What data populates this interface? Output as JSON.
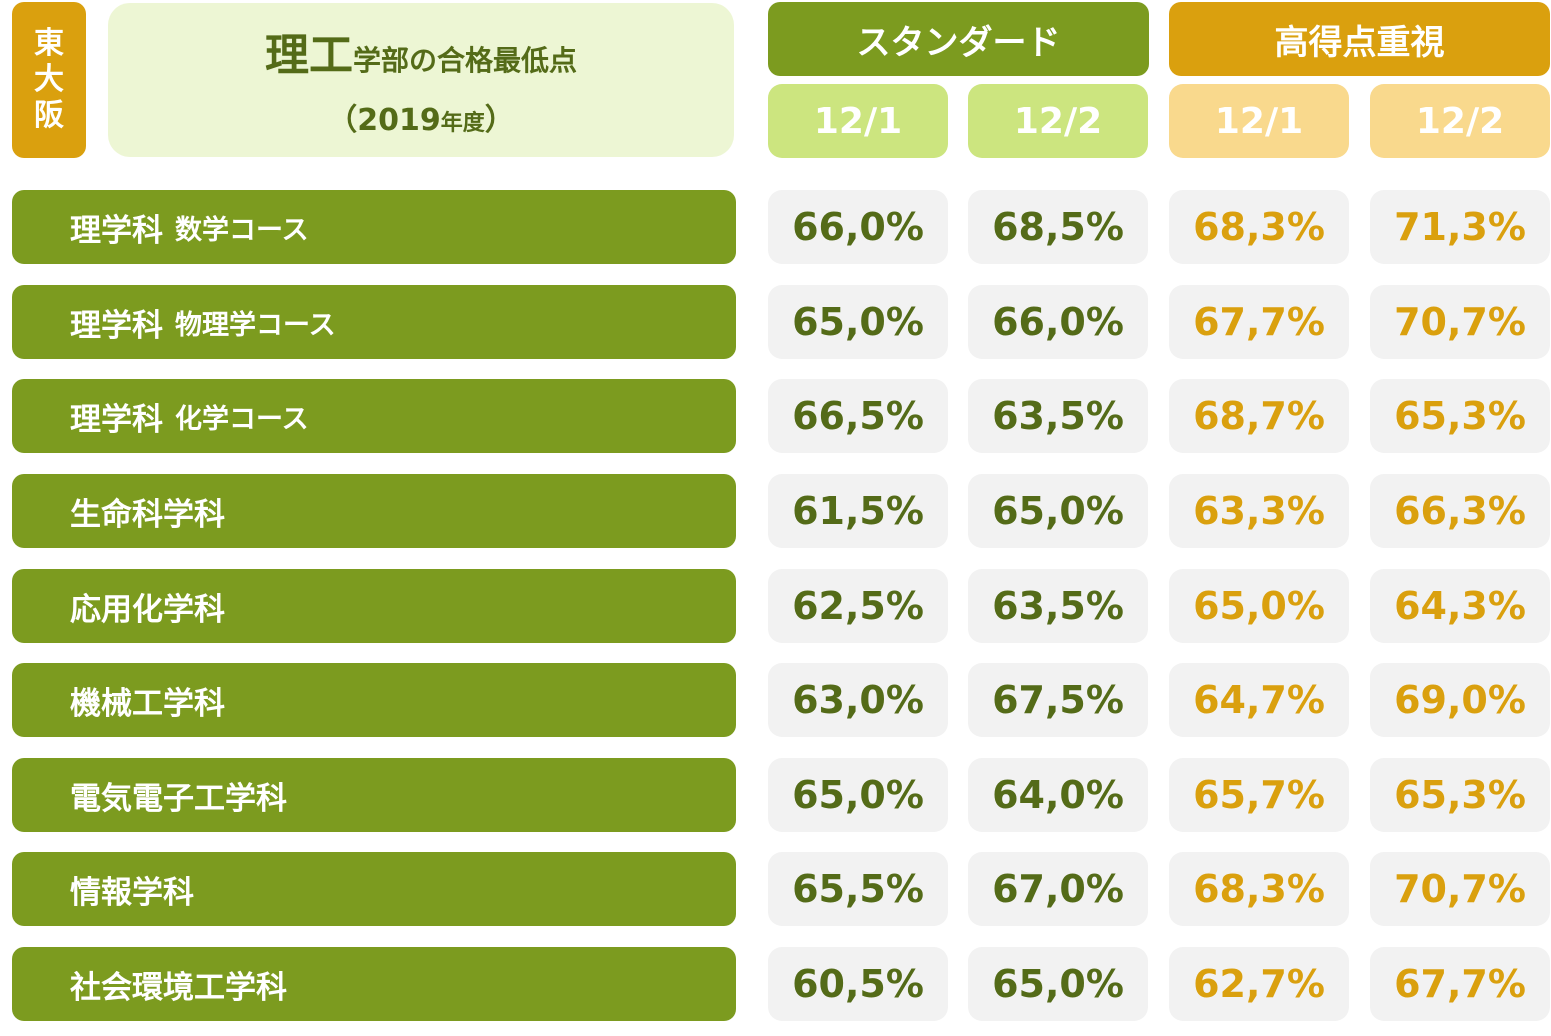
{
  "header": {
    "region_badge": [
      "東",
      "大",
      "阪"
    ],
    "title_main": "理工",
    "title_rest": "学部の合格最低点",
    "year_open": "（2019",
    "year_suffix": "年度",
    "year_close": "）",
    "groups": [
      {
        "label": "スタンダード",
        "color": "#7C9B1F",
        "dates": [
          "12/1",
          "12/2"
        ]
      },
      {
        "label": "高得点重視",
        "color": "#DAA00E",
        "dates": [
          "12/1",
          "12/2"
        ]
      }
    ]
  },
  "colors": {
    "standard_dark": "#7C9B1F",
    "standard_light": "#CCE57F",
    "standard_text": "#546B18",
    "high_dark": "#DAA00E",
    "high_light": "#F9D98D",
    "cell_bg": "#F2F2F2",
    "title_bg": "#EDF6D4"
  },
  "rows": [
    {
      "name": "理学科",
      "sub": "数学コース",
      "values": [
        "66,0%",
        "68,5%",
        "68,3%",
        "71,3%"
      ]
    },
    {
      "name": "理学科",
      "sub": "物理学コース",
      "values": [
        "65,0%",
        "66,0%",
        "67,7%",
        "70,7%"
      ]
    },
    {
      "name": "理学科",
      "sub": "化学コース",
      "values": [
        "66,5%",
        "63,5%",
        "68,7%",
        "65,3%"
      ]
    },
    {
      "name": "生命科学科",
      "sub": "",
      "values": [
        "61,5%",
        "65,0%",
        "63,3%",
        "66,3%"
      ]
    },
    {
      "name": "応用化学科",
      "sub": "",
      "values": [
        "62,5%",
        "63,5%",
        "65,0%",
        "64,3%"
      ]
    },
    {
      "name": "機械工学科",
      "sub": "",
      "values": [
        "63,0%",
        "67,5%",
        "64,7%",
        "69,0%"
      ]
    },
    {
      "name": "電気電子工学科",
      "sub": "",
      "values": [
        "65,0%",
        "64,0%",
        "65,7%",
        "65,3%"
      ]
    },
    {
      "name": "情報学科",
      "sub": "",
      "values": [
        "65,5%",
        "67,0%",
        "68,3%",
        "70,7%"
      ]
    },
    {
      "name": "社会環境工学科",
      "sub": "",
      "values": [
        "60,5%",
        "65,0%",
        "62,7%",
        "67,7%"
      ]
    }
  ],
  "chart_data": {
    "type": "table",
    "title": "理工学部の合格最低点（2019年度）",
    "region": "東大阪",
    "columns": [
      "スタンダード 12/1",
      "スタンダード 12/2",
      "高得点重視 12/1",
      "高得点重視 12/2"
    ],
    "categories": [
      "理学科 数学コース",
      "理学科 物理学コース",
      "理学科 化学コース",
      "生命科学科",
      "応用化学科",
      "機械工学科",
      "電気電子工学科",
      "情報学科",
      "社会環境工学科"
    ],
    "series": [
      {
        "name": "スタンダード 12/1",
        "values": [
          66.0,
          65.0,
          66.5,
          61.5,
          62.5,
          63.0,
          65.0,
          65.5,
          60.5
        ]
      },
      {
        "name": "スタンダード 12/2",
        "values": [
          68.5,
          66.0,
          63.5,
          65.0,
          63.5,
          67.5,
          64.0,
          67.0,
          65.0
        ]
      },
      {
        "name": "高得点重視 12/1",
        "values": [
          68.3,
          67.7,
          68.7,
          63.3,
          65.0,
          64.7,
          65.7,
          68.3,
          62.7
        ]
      },
      {
        "name": "高得点重視 12/2",
        "values": [
          71.3,
          70.7,
          65.3,
          66.3,
          64.3,
          69.0,
          65.3,
          70.7,
          67.7
        ]
      }
    ],
    "unit": "%"
  }
}
